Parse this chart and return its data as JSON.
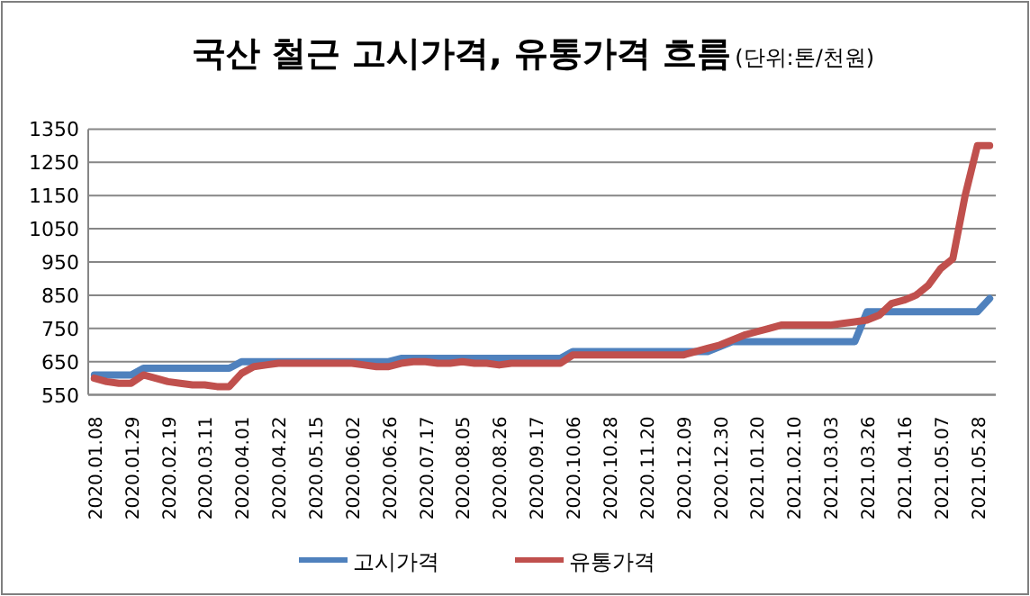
{
  "chart_data": {
    "type": "line",
    "title": "국산 철근 고시가격, 유통가격 흐름",
    "subtitle": "(단위:톤/천원)",
    "categories": [
      "2020.01.08",
      null,
      null,
      "2020.01.29",
      null,
      null,
      "2020.02.19",
      null,
      null,
      "2020.03.11",
      null,
      null,
      "2020.04.01",
      null,
      null,
      "2020.04.22",
      null,
      null,
      "2020.05.15",
      null,
      null,
      "2020.06.02",
      null,
      null,
      "2020.06.26",
      null,
      null,
      "2020.07.17",
      null,
      null,
      "2020.08.05",
      null,
      null,
      "2020.08.26",
      null,
      null,
      "2020.09.17",
      null,
      null,
      "2020.10.06",
      null,
      null,
      "2020.10.28",
      null,
      null,
      "2020.11.20",
      null,
      null,
      "2020.12.09",
      null,
      null,
      "2020.12.30",
      null,
      null,
      "2021.01.20",
      null,
      null,
      "2021.02.10",
      null,
      null,
      "2021.03.03",
      null,
      null,
      "2021.03.26",
      null,
      null,
      "2021.04.16",
      null,
      null,
      "2021.05.07",
      null,
      null,
      "2021.05.28",
      null
    ],
    "series": [
      {
        "name": "고시가격",
        "color": "#4f81bd",
        "values": [
          610,
          610,
          610,
          610,
          630,
          630,
          630,
          630,
          630,
          630,
          630,
          630,
          650,
          650,
          650,
          650,
          650,
          650,
          650,
          650,
          650,
          650,
          650,
          650,
          650,
          660,
          660,
          660,
          660,
          660,
          660,
          660,
          660,
          660,
          660,
          660,
          660,
          660,
          660,
          680,
          680,
          680,
          680,
          680,
          680,
          680,
          680,
          680,
          680,
          680,
          680,
          695,
          710,
          710,
          710,
          710,
          710,
          710,
          710,
          710,
          710,
          710,
          710,
          800,
          800,
          800,
          800,
          800,
          800,
          800,
          800,
          800,
          800,
          840
        ]
      },
      {
        "name": "유통가격",
        "color": "#c0504d",
        "values": [
          600,
          590,
          585,
          585,
          610,
          600,
          590,
          585,
          580,
          580,
          575,
          575,
          615,
          635,
          640,
          645,
          645,
          645,
          645,
          645,
          645,
          645,
          640,
          635,
          635,
          645,
          650,
          650,
          645,
          645,
          650,
          645,
          645,
          640,
          645,
          645,
          645,
          645,
          645,
          670,
          670,
          670,
          670,
          670,
          670,
          670,
          670,
          670,
          670,
          680,
          690,
          700,
          715,
          730,
          740,
          750,
          760,
          760,
          760,
          760,
          760,
          765,
          770,
          775,
          790,
          825,
          835,
          850,
          880,
          930,
          960,
          1150,
          1300,
          1300
        ]
      }
    ],
    "ylim": [
      550,
      1350
    ],
    "yticks": [
      550,
      650,
      750,
      850,
      950,
      1050,
      1150,
      1250,
      1350
    ],
    "grid": "y",
    "legend": "bottom"
  }
}
